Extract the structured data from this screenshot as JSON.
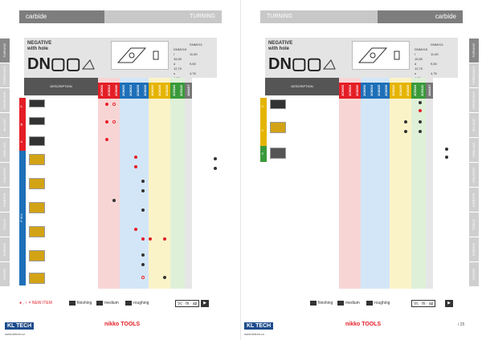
{
  "left": {
    "header_category": "carbide",
    "header_section": "TURNING",
    "title_line1": "NEGATIVE",
    "title_line2": "with hole",
    "code": "DN▢▢",
    "angle": "55°",
    "dims": [
      [
        "l",
        "d",
        "s"
      ],
      [
        "11,6",
        "9,5",
        "4,76"
      ],
      [
        "15,5",
        "12,7",
        "4,76"
      ]
    ],
    "group_header": "DESCRIPTION",
    "page_number": "/ 24",
    "legend": "● , ○ = NEW ITEM",
    "finishing": "finishing",
    "medium": "medium",
    "roughing": "roughing",
    "vc": "Vc · fn · ap",
    "brand": "KL TECH",
    "brand2": "nikko TOOLS",
    "www": "www.kltech.cz"
  },
  "right": {
    "header_category": "carbide",
    "header_section": "TURNING",
    "title_line1": "NEGATIVE",
    "title_line2": "with hole",
    "code": "DN▢▢",
    "angle": "55°",
    "group_header": "DESCRIPTION",
    "page_number": "/ 25",
    "finishing": "finishing",
    "medium": "medium",
    "roughing": "roughing",
    "vc": "Vc · fn · ap",
    "brand": "KL TECH",
    "brand2": "nikko TOOLS",
    "www": "www.kltech.cz"
  }
}
